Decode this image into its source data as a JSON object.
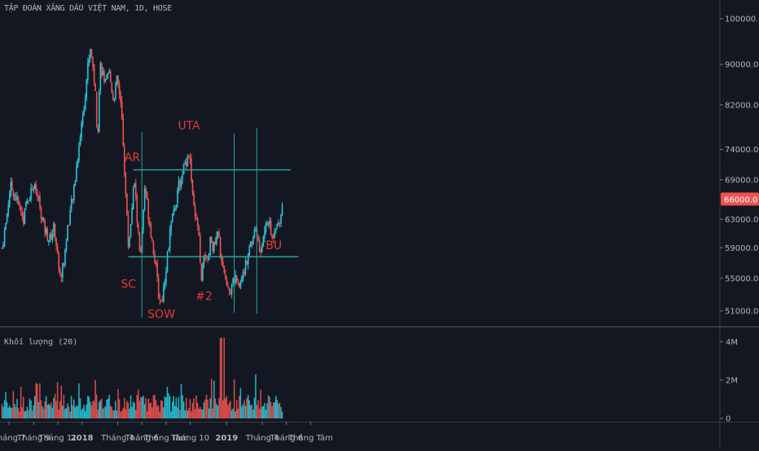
{
  "header": {
    "title": "TẬP ĐOÀN XĂNG DẦU VIỆT NAM, 1D, HOSE",
    "volume_label": "Khối lượng (20)"
  },
  "colors": {
    "background": "#131722",
    "up": "#26c6da",
    "down": "#ef5350",
    "annotation_line": "#26a69a",
    "annotation_text": "#e53935",
    "price_tag": "#ef5350",
    "text": "#b2b5be"
  },
  "chart_data": [
    {
      "type": "candlestick",
      "title": "TẬP ĐOÀN XĂNG DẦU VIỆT NAM, 1D, HOSE",
      "y_scale": "log",
      "ylim": [
        49500,
        104000
      ],
      "y_ticks": [
        {
          "value": 100000,
          "label": "100000.0"
        },
        {
          "value": 90000,
          "label": "90000.0"
        },
        {
          "value": 82000,
          "label": "82000.0"
        },
        {
          "value": 74000,
          "label": "74000.0"
        },
        {
          "value": 69000,
          "label": "69000.0"
        },
        {
          "value": 63000,
          "label": "63000.0"
        },
        {
          "value": 59000,
          "label": "59000.0"
        },
        {
          "value": 55000,
          "label": "55000.0"
        },
        {
          "value": 51000,
          "label": "51000.0"
        }
      ],
      "last_price": {
        "value": 66000,
        "label": "66000.0"
      },
      "x_ticks": [
        "Tháng 7",
        "Tháng 9",
        "Tháng 11",
        "2018",
        "Tháng 4",
        "Tháng 6",
        "Tháng Tám",
        "Tháng 10",
        "2019",
        "Tháng 4",
        "Tháng 6",
        "Tháng Tám"
      ],
      "price_path": [
        [
          "2017-06-12",
          59000
        ],
        [
          "2017-06-22",
          62500
        ],
        [
          "2017-07-03",
          68000
        ],
        [
          "2017-07-12",
          67000
        ],
        [
          "2017-07-25",
          65000
        ],
        [
          "2017-08-05",
          63000
        ],
        [
          "2017-08-15",
          66000
        ],
        [
          "2017-08-30",
          68000
        ],
        [
          "2017-09-12",
          66000
        ],
        [
          "2017-09-25",
          62000
        ],
        [
          "2017-10-10",
          60000
        ],
        [
          "2017-10-22",
          62000
        ],
        [
          "2017-11-05",
          55000
        ],
        [
          "2017-11-15",
          57000
        ],
        [
          "2017-11-25",
          62000
        ],
        [
          "2017-12-10",
          67000
        ],
        [
          "2017-12-22",
          74000
        ],
        [
          "2018-01-05",
          82000
        ],
        [
          "2018-01-15",
          90000
        ],
        [
          "2018-01-22",
          94000
        ],
        [
          "2018-02-02",
          85000
        ],
        [
          "2018-02-08",
          76000
        ],
        [
          "2018-02-15",
          90000
        ],
        [
          "2018-02-28",
          86000
        ],
        [
          "2018-03-10",
          88000
        ],
        [
          "2018-03-20",
          83000
        ],
        [
          "2018-03-30",
          87000
        ],
        [
          "2018-04-10",
          80000
        ],
        [
          "2018-04-20",
          67000
        ],
        [
          "2018-04-27",
          59000
        ],
        [
          "2018-05-05",
          64000
        ],
        [
          "2018-05-12",
          69000
        ],
        [
          "2018-05-20",
          62000
        ],
        [
          "2018-05-28",
          57500
        ],
        [
          "2018-06-08",
          68000
        ],
        [
          "2018-06-16",
          64000
        ],
        [
          "2018-06-26",
          60000
        ],
        [
          "2018-07-04",
          57000
        ],
        [
          "2018-07-12",
          53000
        ],
        [
          "2018-07-20",
          52000
        ],
        [
          "2018-07-30",
          56000
        ],
        [
          "2018-08-10",
          61000
        ],
        [
          "2018-08-22",
          65000
        ],
        [
          "2018-09-05",
          69000
        ],
        [
          "2018-09-18",
          72000
        ],
        [
          "2018-09-28",
          73500
        ],
        [
          "2018-10-06",
          66000
        ],
        [
          "2018-10-12",
          63000
        ],
        [
          "2018-10-20",
          62000
        ],
        [
          "2018-10-28",
          54000
        ],
        [
          "2018-11-05",
          59000
        ],
        [
          "2018-11-12",
          56000
        ],
        [
          "2018-11-20",
          60000
        ],
        [
          "2018-11-30",
          59000
        ],
        [
          "2018-12-10",
          61000
        ],
        [
          "2018-12-20",
          56000
        ],
        [
          "2019-01-02",
          54500
        ],
        [
          "2019-01-10",
          53500
        ],
        [
          "2019-01-20",
          55000
        ],
        [
          "2019-02-01",
          53500
        ],
        [
          "2019-02-10",
          56000
        ],
        [
          "2019-02-20",
          57000
        ],
        [
          "2019-03-05",
          60000
        ],
        [
          "2019-03-15",
          62000
        ],
        [
          "2019-03-25",
          58000
        ],
        [
          "2019-04-05",
          61000
        ],
        [
          "2019-04-15",
          63000
        ],
        [
          "2019-04-25",
          60000
        ],
        [
          "2019-05-03",
          62500
        ],
        [
          "2019-05-10",
          62000
        ],
        [
          "2019-05-18",
          64500
        ],
        [
          "2019-05-23",
          66000
        ]
      ],
      "volume": {
        "ylim": [
          0,
          4500000
        ],
        "y_ticks": [
          {
            "value": 4000000,
            "label": "4M"
          },
          {
            "value": 2000000,
            "label": "2M"
          },
          {
            "value": 0,
            "label": "0"
          }
        ]
      },
      "annotations": {
        "labels": [
          {
            "text": "AR",
            "date": "2018-05-08",
            "price": 72000
          },
          {
            "text": "UTA",
            "date": "2018-09-28",
            "price": 77500
          },
          {
            "text": "SC",
            "date": "2018-04-28",
            "price": 53800
          },
          {
            "text": "SOW",
            "date": "2018-07-20",
            "price": 50200
          },
          {
            "text": "#2",
            "date": "2018-11-05",
            "price": 52300
          },
          {
            "text": "BU",
            "date": "2019-04-30",
            "price": 58800
          }
        ],
        "hlines": [
          {
            "price": 70600,
            "from": "2018-05-10",
            "to": "2019-06-12"
          },
          {
            "price": 57800,
            "from": "2018-04-28",
            "to": "2019-07-01"
          }
        ],
        "vlines": [
          {
            "date": "2018-06-01",
            "from": 50200,
            "to": 77000
          },
          {
            "date": "2019-01-20",
            "from": 50800,
            "to": 76800
          },
          {
            "date": "2019-03-18",
            "from": 50700,
            "to": 77800
          }
        ]
      }
    }
  ]
}
